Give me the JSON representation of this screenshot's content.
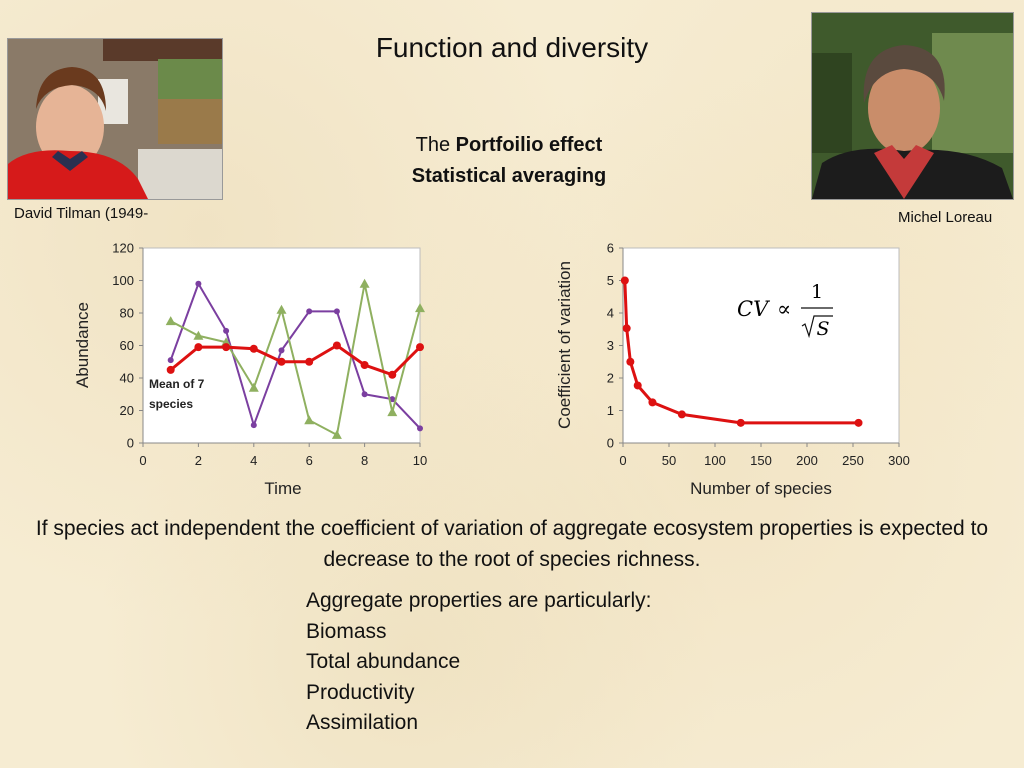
{
  "slide": {
    "title": "Function and diversity",
    "subtitle_prefix": "The ",
    "subtitle_bold_1": "Portfoilio effect",
    "subtitle_bold_2": "Statistical averaging",
    "caption_left": "David Tilman (1949-",
    "caption_right": "Michel Loreau",
    "body": "If species act independent the coefficient of variation of aggregate ecosystem properties is expected to decrease to the root of species richness.",
    "list_header": "Aggregate properties are particularly:",
    "list_items": [
      "Biomass",
      "Total abundance",
      "Productivity",
      "Assimilation"
    ],
    "formula": {
      "lhs": "CV",
      "op": "∝",
      "num": "1",
      "den": "S"
    }
  },
  "chart_data": [
    {
      "type": "line",
      "xlabel": "Time",
      "ylabel": "Abundance",
      "xlim": [
        0,
        10
      ],
      "ylim": [
        0,
        120
      ],
      "xticks": [
        0,
        2,
        4,
        6,
        8,
        10
      ],
      "yticks": [
        0,
        20,
        40,
        60,
        80,
        100,
        120
      ],
      "x": [
        1,
        2,
        3,
        4,
        5,
        6,
        7,
        8,
        9,
        10
      ],
      "annotation": "Mean of 7 species",
      "series": [
        {
          "name": "",
          "color": "#7b3fa0",
          "marker": "circle",
          "values": [
            51,
            98,
            69,
            11,
            57,
            81,
            81,
            30,
            27,
            9
          ]
        },
        {
          "name": "",
          "color": "#8fb060",
          "marker": "triangle",
          "values": [
            75,
            66,
            62,
            34,
            82,
            14,
            5,
            98,
            19,
            83
          ]
        },
        {
          "name": "Mean of 7 species",
          "color": "#dd1111",
          "marker": "circle",
          "values": [
            45,
            59,
            59,
            58,
            50,
            50,
            60,
            48,
            42,
            59
          ]
        }
      ]
    },
    {
      "type": "line",
      "xlabel": "Number of species",
      "ylabel": "Coefficient of variation",
      "xlim": [
        0,
        300
      ],
      "ylim": [
        0,
        6
      ],
      "xticks": [
        0,
        50,
        100,
        150,
        200,
        250,
        300
      ],
      "yticks": [
        0,
        1,
        2,
        3,
        4,
        5,
        6
      ],
      "series": [
        {
          "name": "",
          "color": "#dd1111",
          "marker": "circle",
          "x": [
            2,
            4,
            8,
            16,
            32,
            64,
            128,
            256
          ],
          "values": [
            5.0,
            3.53,
            2.5,
            1.77,
            1.25,
            0.88,
            0.62,
            0.62
          ]
        }
      ]
    }
  ]
}
